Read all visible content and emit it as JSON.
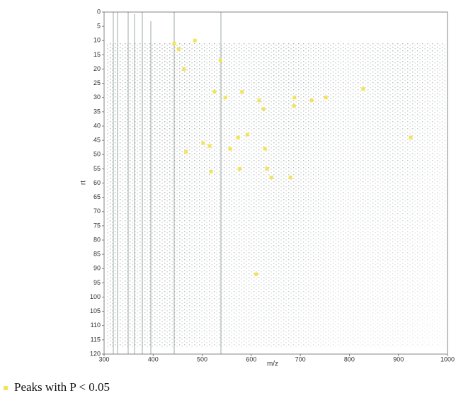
{
  "chart_data": {
    "type": "scatter",
    "x_label": "m/z",
    "y_label": "rt",
    "xlim": [
      300,
      1000
    ],
    "xticks": [
      300,
      400,
      500,
      600,
      700,
      800,
      900,
      1000
    ],
    "ylim": [
      0,
      120
    ],
    "y_reversed": true,
    "yticks": [
      0,
      5,
      10,
      15,
      20,
      25,
      30,
      35,
      40,
      45,
      50,
      55,
      60,
      65,
      70,
      75,
      80,
      85,
      90,
      95,
      100,
      105,
      110,
      115,
      120
    ],
    "series": [
      {
        "name": "Peaks with P < 0.05",
        "color": "#f3e35a",
        "x": [
          443,
          452,
          485,
          537,
          463,
          525,
          547,
          581,
          616,
          625,
          688,
          687,
          723,
          752,
          828,
          925,
          573,
          592,
          467,
          502,
          515,
          557,
          628,
          518,
          576,
          632,
          641,
          680,
          610
        ],
        "values": [
          11,
          13,
          10,
          17,
          20,
          28,
          30,
          28,
          31,
          34,
          30,
          33,
          31,
          30,
          27,
          44,
          44,
          43,
          49,
          46,
          47,
          48,
          48,
          56,
          55,
          55,
          58,
          58,
          92
        ]
      }
    ]
  }
}
